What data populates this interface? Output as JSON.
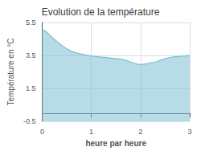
{
  "chart_data": {
    "type": "area",
    "title": "Evolution de la température",
    "xlabel": "heure par heure",
    "ylabel": "Température en °C",
    "x": [
      0,
      0.1,
      0.2,
      0.3,
      0.4,
      0.5,
      0.6,
      0.7,
      0.8,
      0.9,
      1.0,
      1.1,
      1.2,
      1.3,
      1.4,
      1.5,
      1.6,
      1.7,
      1.8,
      1.9,
      2.0,
      2.1,
      2.2,
      2.3,
      2.4,
      2.5,
      2.6,
      2.7,
      2.8,
      2.9,
      3.0
    ],
    "values": [
      5.1,
      4.9,
      4.6,
      4.35,
      4.1,
      3.9,
      3.75,
      3.65,
      3.58,
      3.52,
      3.47,
      3.43,
      3.4,
      3.37,
      3.34,
      3.31,
      3.28,
      3.2,
      3.1,
      3.0,
      2.95,
      2.98,
      3.05,
      3.1,
      3.2,
      3.3,
      3.38,
      3.42,
      3.45,
      3.47,
      3.5
    ],
    "xlim": [
      0,
      3
    ],
    "ylim": [
      -0.5,
      5.5
    ],
    "xticks": [
      0,
      1,
      2,
      3
    ],
    "yticks": [
      -0.5,
      1.5,
      3.5,
      5.5
    ],
    "color": "#7bbdd4",
    "grid": true
  }
}
